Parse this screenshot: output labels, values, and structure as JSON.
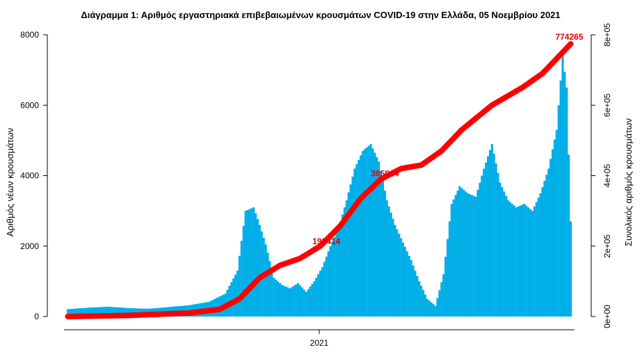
{
  "chart_data": {
    "type": "bar",
    "title": "Διάγραμμα 1: Αριθμός εργαστηριακά επιβεβαιωμένων κρουσμάτων COVID-19 στην Ελλάδα, 05 Νοεμβρίου 2021",
    "ylabel": "Αριθμός νέων κρουσμάτων",
    "y2label": "Συνολικός αριθμός κρουσμάτων",
    "ylim": [
      0,
      8000
    ],
    "y2lim": [
      0,
      800000
    ],
    "y_ticks": [
      "0",
      "2000",
      "4000",
      "6000",
      "8000"
    ],
    "y2_ticks": [
      "0e+00",
      "2e+05",
      "4e+05",
      "6e+05",
      "8e+05"
    ],
    "x_ticks": [
      "2021"
    ],
    "x_tick_position": 0.5,
    "n_days": 250,
    "colors": {
      "bars": "#00aee8",
      "cumulative": "#ff0000",
      "annotation": "#e00000"
    },
    "daily_cases_series": {
      "name": "",
      "anchor_day_index": [
        0,
        10,
        20,
        30,
        40,
        50,
        60,
        70,
        78,
        84,
        88,
        92,
        95,
        98,
        102,
        106,
        110,
        114,
        118,
        122,
        126,
        130,
        134,
        138,
        142,
        146,
        150,
        154,
        158,
        162,
        166,
        170,
        174,
        178,
        182,
        186,
        190,
        194,
        198,
        202,
        206,
        210,
        214,
        218,
        222,
        226,
        230,
        234,
        238,
        242,
        245,
        247,
        249
      ],
      "anchor_values": [
        210,
        250,
        280,
        240,
        220,
        270,
        320,
        420,
        650,
        1300,
        3000,
        3100,
        2600,
        2050,
        1100,
        900,
        800,
        950,
        700,
        1000,
        1400,
        2000,
        2500,
        3300,
        4200,
        4700,
        4900,
        4400,
        3300,
        2600,
        2100,
        1600,
        1000,
        500,
        300,
        1200,
        3200,
        3700,
        3500,
        3400,
        4200,
        4900,
        3800,
        3300,
        3100,
        3200,
        3000,
        3500,
        4200,
        5300,
        7400,
        6500,
        2700
      ]
    },
    "cumulative_series": {
      "name": "",
      "anchor_day_index": [
        0,
        30,
        60,
        75,
        85,
        95,
        105,
        115,
        125,
        135,
        145,
        155,
        165,
        175,
        185,
        195,
        210,
        225,
        235,
        245,
        249
      ],
      "anchor_values": [
        0,
        3000,
        10000,
        20000,
        50000,
        110000,
        145000,
        165000,
        200000,
        258000,
        335000,
        390000,
        420000,
        430000,
        470000,
        530000,
        600000,
        650000,
        690000,
        750000,
        774265
      ]
    },
    "annotations": [
      {
        "day_index": 128,
        "value": 193414,
        "text": "193414"
      },
      {
        "day_index": 157,
        "value": 385924,
        "text": "385924"
      },
      {
        "day_index": 249,
        "value": 774265,
        "text": "774265"
      }
    ]
  }
}
